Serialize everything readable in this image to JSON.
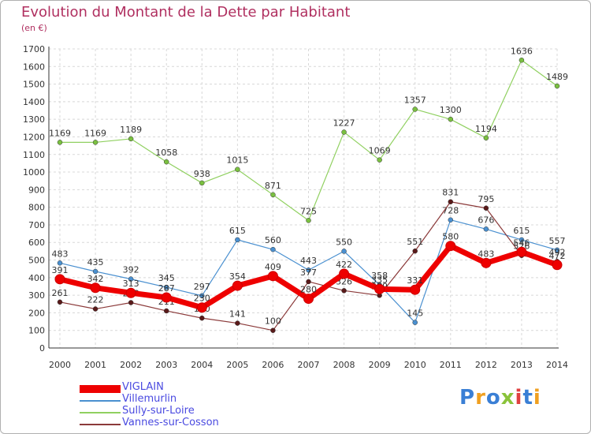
{
  "header": {
    "title": "Evolution du Montant de la Dette par Habitant",
    "subtitle": "(en €)"
  },
  "logo": {
    "text": "Proxiti",
    "colors": [
      "#3a7fd5",
      "#f0a020",
      "#3a7fd5",
      "#8ac33a",
      "#e04040",
      "#3a7fd5",
      "#f0a020"
    ]
  },
  "chart_data": {
    "type": "line",
    "x": [
      "2000",
      "2001",
      "2002",
      "2003",
      "2004",
      "2005",
      "2006",
      "2007",
      "2008",
      "2009",
      "2010",
      "2011",
      "2012",
      "2013",
      "2014"
    ],
    "ylim": [
      0,
      1700
    ],
    "yticks": [
      0,
      100,
      200,
      300,
      400,
      500,
      600,
      700,
      800,
      900,
      1000,
      1100,
      1200,
      1300,
      1400,
      1500,
      1600,
      1700
    ],
    "grid": true,
    "legend_position": "bottom-left",
    "series": [
      {
        "name": "Villemurlin",
        "color": "#4a90d0",
        "marker": "#4a90d0",
        "width": 1.2,
        "values": [
          483,
          435,
          392,
          345,
          297,
          615,
          560,
          443,
          550,
          358,
          145,
          728,
          676,
          615,
          557
        ]
      },
      {
        "name": "Sully-sur-Loire",
        "color": "#90d060",
        "marker": "#7ac040",
        "width": 1.2,
        "values": [
          1169,
          1169,
          1189,
          1058,
          938,
          1015,
          871,
          725,
          1227,
          1069,
          1357,
          1300,
          1194,
          1636,
          1489
        ]
      },
      {
        "name": "Vannes-sur-Cosson",
        "color": "#8b3a3a",
        "marker": "#5a1a1a",
        "width": 1.2,
        "values": [
          261,
          222,
          258,
          211,
          170,
          141,
          100,
          377,
          326,
          299,
          551,
          831,
          795,
          526,
          492
        ]
      },
      {
        "name": "VIGLAIN",
        "color": "#ee0000",
        "marker": "#ee0000",
        "width": 7,
        "values": [
          391,
          342,
          313,
          287,
          230,
          354,
          409,
          280,
          422,
          335,
          331,
          580,
          483,
          546,
          472
        ]
      }
    ]
  }
}
